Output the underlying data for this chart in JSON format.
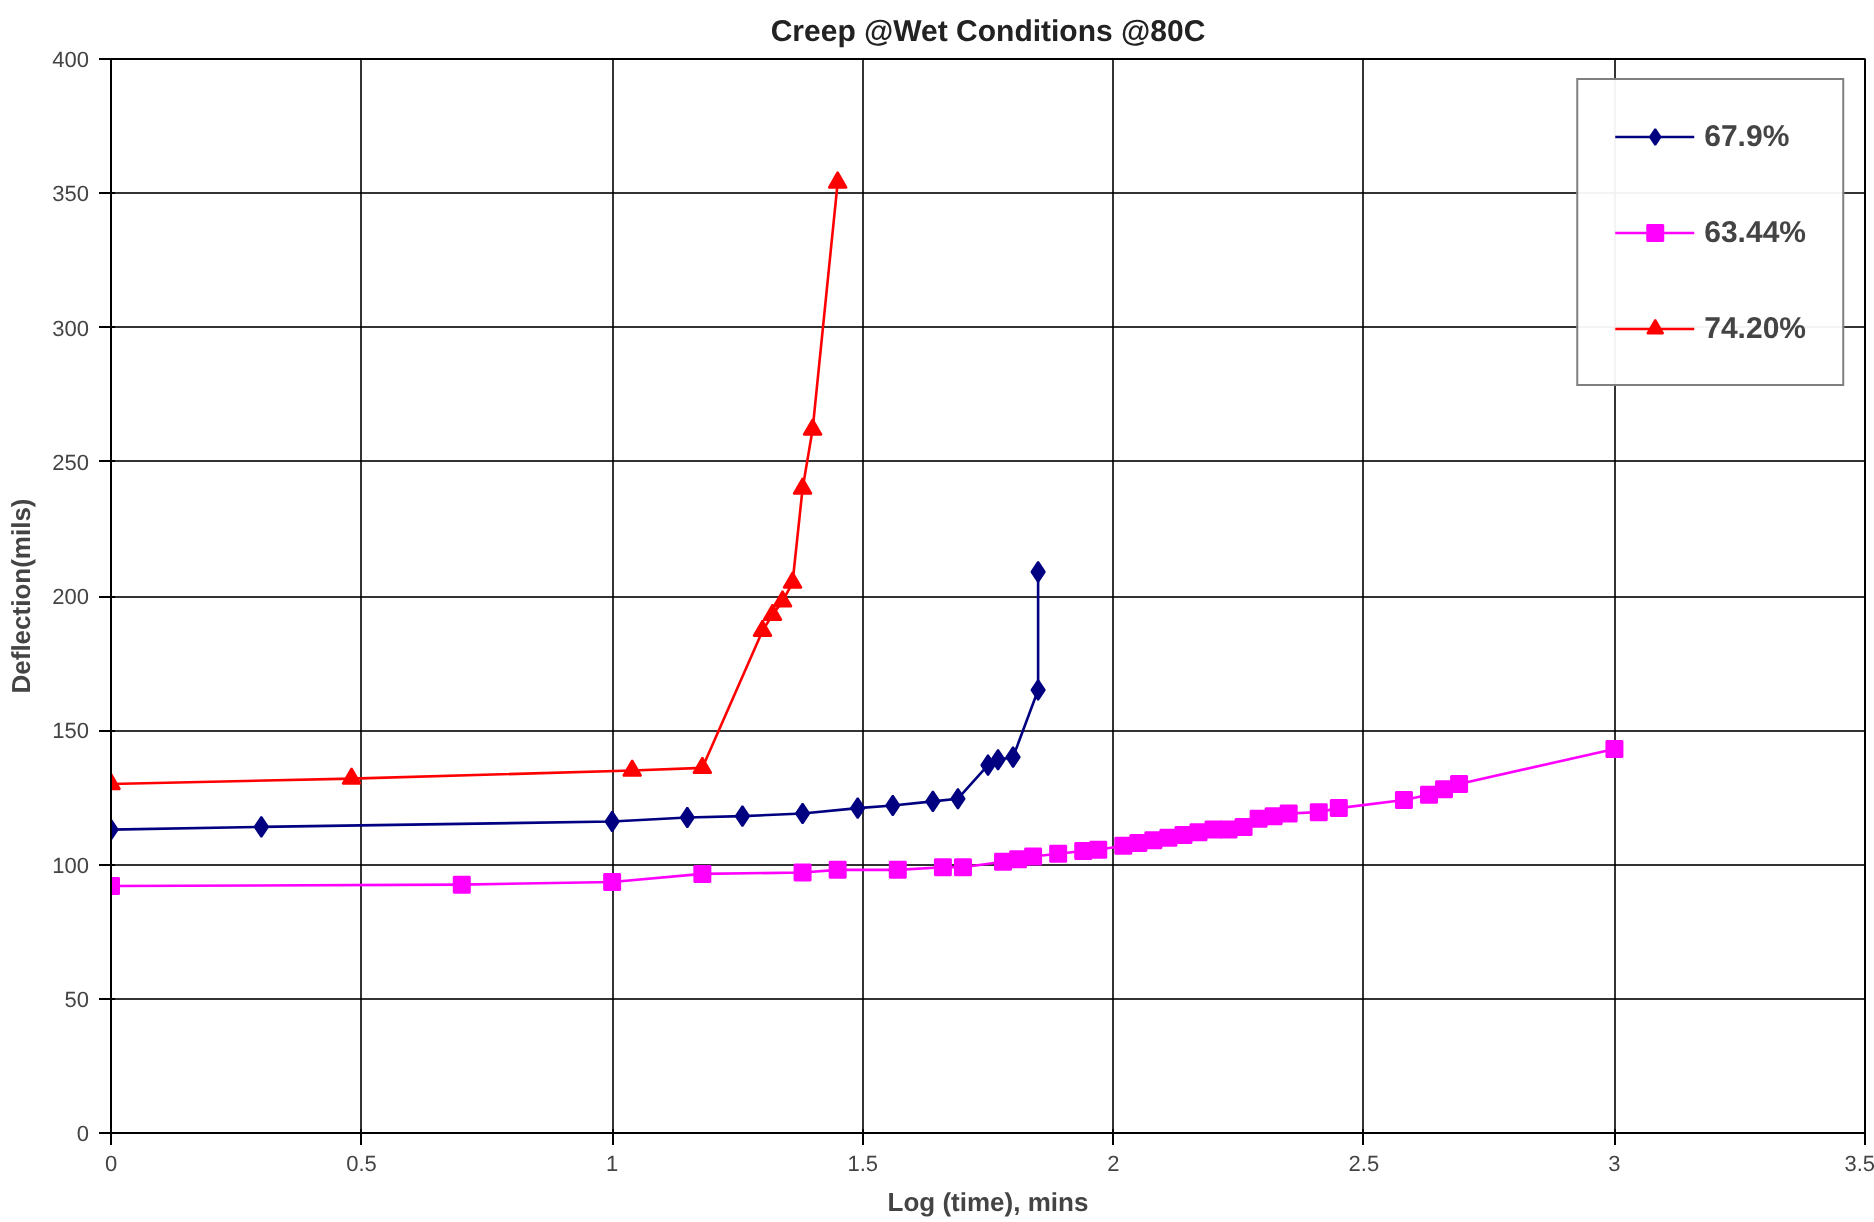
{
  "chart_data": {
    "type": "line",
    "title": "Creep @Wet Conditions @80C",
    "xlabel": "Log (time), mins",
    "ylabel": "Deflection(mils)",
    "xlim": [
      0,
      3.5
    ],
    "xticks": [
      0,
      0.5,
      1,
      1.5,
      2,
      2.5,
      3,
      3.5
    ],
    "ylim": [
      0,
      400
    ],
    "yticks": [
      0,
      50,
      100,
      150,
      200,
      250,
      300,
      350,
      400
    ],
    "grid": true,
    "legend": "top right",
    "series": [
      {
        "name": "67.9%",
        "color": "#000080",
        "marker": "diamond",
        "x": [
          0,
          0.3,
          1.0,
          1.15,
          1.26,
          1.38,
          1.49,
          1.56,
          1.64,
          1.69,
          1.75,
          1.77,
          1.8,
          1.85,
          1.85
        ],
        "values": [
          113,
          114,
          116,
          117.5,
          118,
          119,
          121,
          122,
          123.5,
          124.5,
          137,
          139,
          140,
          165,
          209
        ]
      },
      {
        "name": "63.44%",
        "color": "#ff00ff",
        "marker": "square",
        "x": [
          0,
          0.7,
          1.0,
          1.18,
          1.38,
          1.45,
          1.57,
          1.66,
          1.7,
          1.78,
          1.81,
          1.84,
          1.89,
          1.94,
          1.97,
          2.02,
          2.05,
          2.08,
          2.11,
          2.14,
          2.17,
          2.2,
          2.23,
          2.26,
          2.29,
          2.32,
          2.35,
          2.41,
          2.45,
          2.58,
          2.63,
          2.66,
          2.69,
          3.0
        ],
        "values": [
          92,
          92.5,
          93.5,
          96.5,
          97,
          98,
          98,
          99,
          99,
          101,
          102,
          103,
          104,
          105,
          105.5,
          107,
          108,
          109,
          110,
          111,
          112,
          113,
          113,
          114,
          117,
          118,
          119,
          119.5,
          121,
          124,
          126,
          128,
          130,
          143
        ]
      },
      {
        "name": "74.20%",
        "color": "#ff0000",
        "marker": "triangle",
        "x": [
          0,
          0.48,
          1.04,
          1.18,
          1.3,
          1.32,
          1.34,
          1.36,
          1.38,
          1.4,
          1.45
        ],
        "values": [
          130,
          132,
          135,
          136,
          187,
          193,
          198,
          205,
          240,
          262,
          354
        ]
      }
    ]
  }
}
